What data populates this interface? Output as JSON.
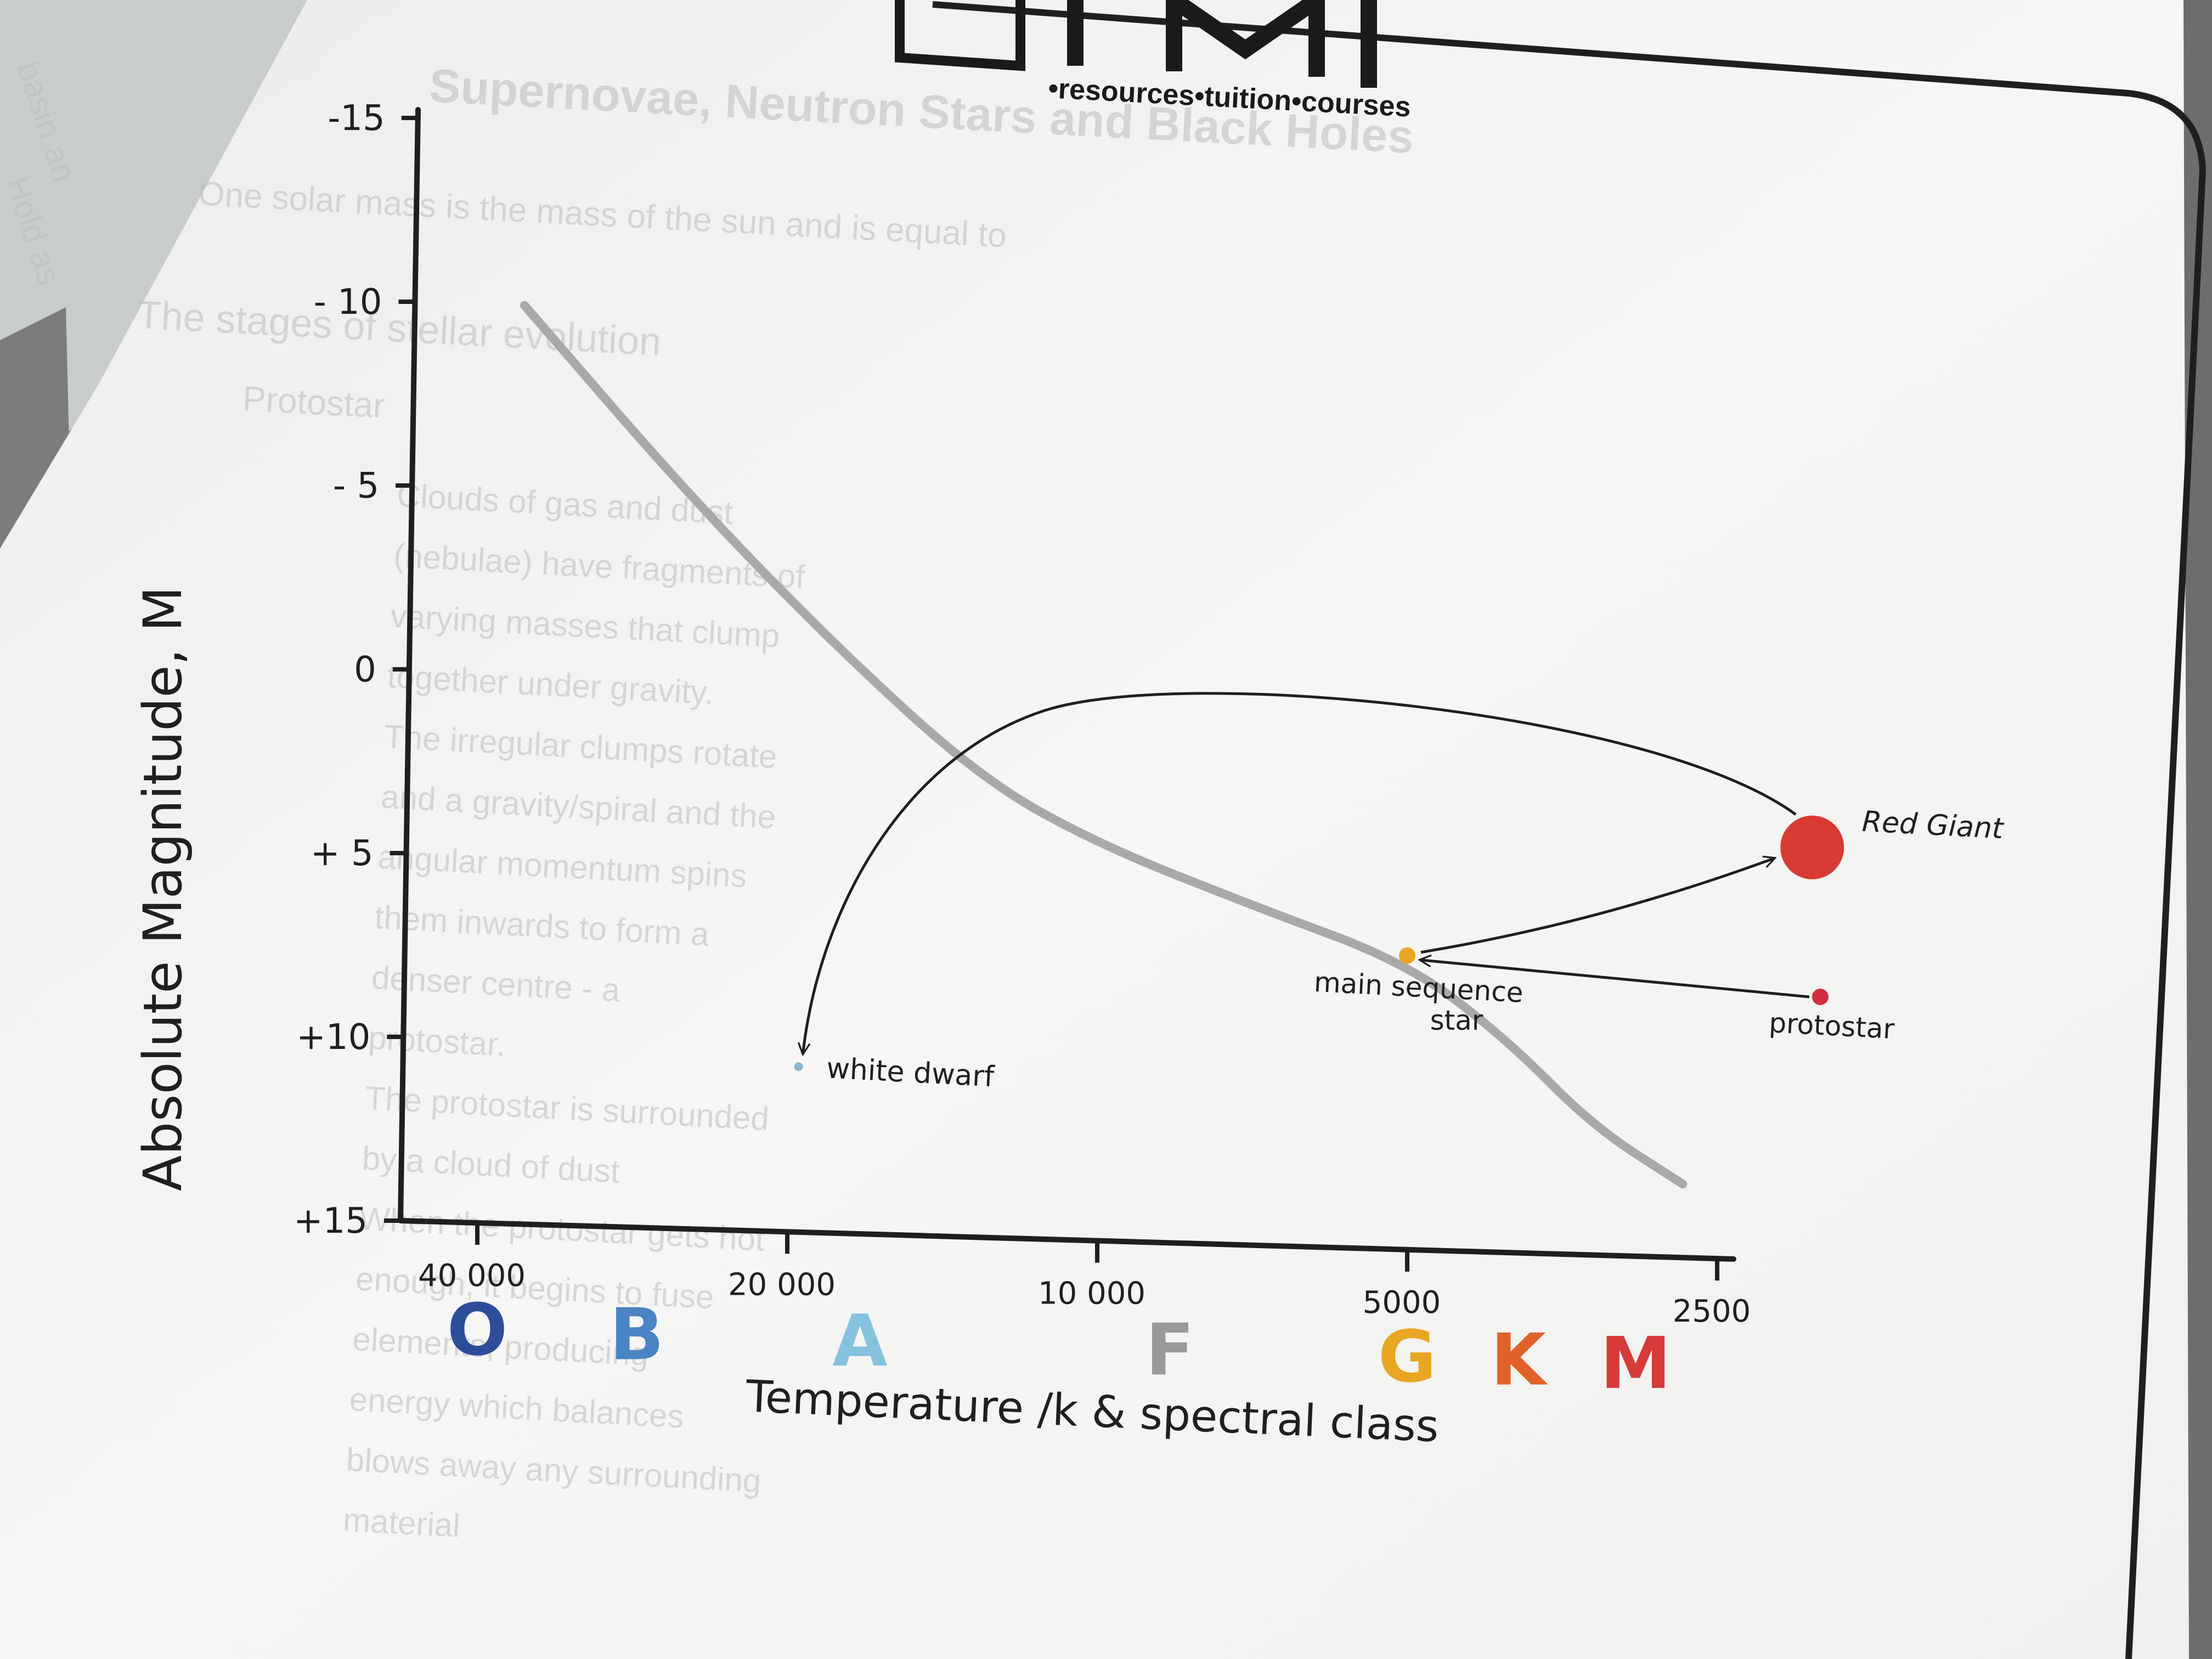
{
  "logo": {
    "tagline": "•resources•tuition•courses"
  },
  "background_text": {
    "heading": "Supernovae, Neutron Stars and Black Holes",
    "line1": "One solar mass is the mass of the sun and is equal to",
    "line2": "The stages of stellar evolution",
    "line3": "Protostar",
    "bullets": [
      "Clouds of gas and dust",
      "(nebulae) have fragments of",
      "varying masses that clump",
      "together under gravity.",
      "The irregular clumps rotate",
      "and a gravity/spiral and the",
      "angular momentum spins",
      "them inwards to form a",
      "denser centre - a",
      "protostar.",
      "The protostar is surrounded",
      "by a cloud of dust",
      "When the protostar gets hot",
      "enough, it begins to fuse",
      "elements, producing",
      "energy which balances",
      "blows away any surrounding",
      "material"
    ],
    "side_left_top": "basin an",
    "side_left_bottom": "Hold as"
  },
  "colors": {
    "paper": "#f4f4f2",
    "ink": "#1f1f1f",
    "curve": "#a9a9a9",
    "red_giant": "#d93a33",
    "protostar": "#d0303f",
    "main_sequence": "#e8a623",
    "white_dwarf": "#8ab6cf",
    "class_O": "#2d4d9a",
    "class_B": "#4a84c4",
    "class_A": "#86c2de",
    "class_F": "#9a9a9a",
    "class_G": "#e8a623",
    "class_K": "#e0622a",
    "class_M": "#d63a39"
  },
  "chart_data": {
    "type": "line",
    "title": "",
    "xlabel": "Temperature /k & spectral class",
    "ylabel": "Absolute Magnitude, M",
    "x_axis": {
      "scale": "log",
      "direction": "decreasing-right",
      "tick_values": [
        40000,
        20000,
        10000,
        5000,
        2500
      ],
      "tick_labels": [
        "40 000",
        "20 000",
        "10 000",
        "5000",
        "2500"
      ]
    },
    "y_axis": {
      "direction": "inverted",
      "ylim": [
        -15,
        15
      ],
      "tick_values": [
        -15,
        -10,
        -5,
        0,
        5,
        10,
        15
      ],
      "tick_labels": [
        "-15",
        "- 10",
        "- 5",
        "0",
        "+ 5",
        "+10",
        "+15"
      ]
    },
    "spectral_classes": [
      {
        "label": "O",
        "temperature": 40000
      },
      {
        "label": "B",
        "temperature": 28000
      },
      {
        "label": "A",
        "temperature": 17000
      },
      {
        "label": "F",
        "temperature": 8500
      },
      {
        "label": "G",
        "temperature": 5000
      },
      {
        "label": "K",
        "temperature": 3900
      },
      {
        "label": "M",
        "temperature": 3000
      }
    ],
    "series": [
      {
        "points": [
          [
            36000,
            -10
          ],
          [
            25000,
            -5
          ],
          [
            18000,
            -1
          ],
          [
            13000,
            2.5
          ],
          [
            10000,
            4.2
          ],
          [
            7000,
            5.8
          ],
          [
            5000,
            7.2
          ],
          [
            4000,
            9.2
          ],
          [
            3300,
            11.5
          ],
          [
            2700,
            13.0
          ]
        ]
      }
    ],
    "stages": [
      {
        "label": "Red Giant",
        "temperature": 2400,
        "magnitude": 3.8,
        "size": "large"
      },
      {
        "label": "main sequence star",
        "temperature": 5000,
        "magnitude": 7.0,
        "size": "small"
      },
      {
        "label": "protostar",
        "temperature": 2300,
        "magnitude": 8.0,
        "size": "small"
      },
      {
        "label": "white dwarf",
        "temperature": 19500,
        "magnitude": 10.5,
        "size": "tiny"
      }
    ],
    "labels": {
      "red_giant": "Red Giant",
      "main_sequence_line1": "main sequence",
      "main_sequence_line2": "star",
      "protostar": "protostar",
      "white_dwarf": "white dwarf"
    },
    "arrows": [
      {
        "from": "protostar",
        "to": "main sequence star"
      },
      {
        "from": "main sequence star",
        "to": "Red Giant"
      },
      {
        "from": "Red Giant",
        "to": "white dwarf"
      }
    ],
    "grid": false,
    "legend": "none"
  }
}
